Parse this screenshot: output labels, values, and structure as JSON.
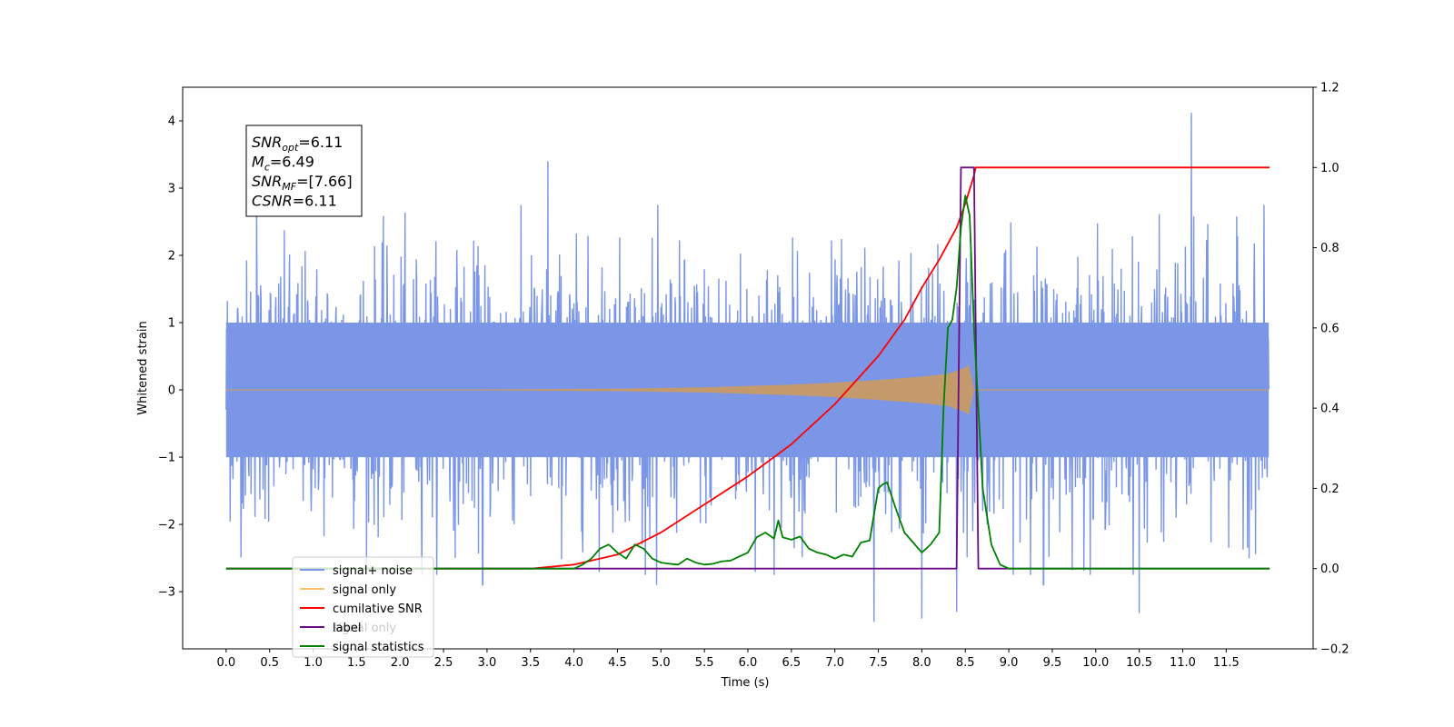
{
  "chart_data": {
    "type": "line",
    "xlabel": "Time (s)",
    "ylabel": "Whitened strain",
    "xlim": [
      -0.5,
      12.5
    ],
    "ylim": [
      -3.85,
      4.5
    ],
    "y2lim": [
      -0.2,
      1.2
    ],
    "x_tick_labels": [
      "0.0",
      "0.5",
      "1.0",
      "1.5",
      "2.0",
      "2.5",
      "3.0",
      "3.5",
      "4.0",
      "4.5",
      "5.0",
      "5.5",
      "6.0",
      "6.5",
      "7.0",
      "7.5",
      "8.0",
      "8.5",
      "9.0",
      "9.5",
      "10.0",
      "10.5",
      "11.0",
      "11.5"
    ],
    "y_tick_labels": [
      "4",
      "3",
      "2",
      "1",
      "0",
      "−1",
      "−2",
      "−3"
    ],
    "y_tick_values": [
      4,
      3,
      2,
      1,
      0,
      -1,
      -2,
      -3
    ],
    "y2_tick_labels": [
      "1.2",
      "1.0",
      "0.8",
      "0.6",
      "0.4",
      "0.2",
      "0.0",
      "−0.2"
    ],
    "y2_tick_values": [
      1.2,
      1.0,
      0.8,
      0.6,
      0.4,
      0.2,
      0.0,
      -0.2
    ],
    "info_box": {
      "lines": [
        {
          "sym": "SNR",
          "sub": "opt",
          "value": "=6.11"
        },
        {
          "sym": "M",
          "sub": "c",
          "value": "=6.49"
        },
        {
          "sym": "SNR",
          "sub": "MF",
          "value": "=[7.66]"
        },
        {
          "sym": "CSNR",
          "sub": "",
          "value": "=6.11"
        }
      ]
    },
    "legend": {
      "position": "lower-left",
      "entries": [
        {
          "label": "signal+ noise",
          "color": "#7b96e6"
        },
        {
          "label": "signal only",
          "color": "#fdbf6f"
        },
        {
          "label": "cumilative SNR",
          "color": "#ff0000"
        },
        {
          "label": "label",
          "color": "#6a0d83",
          "hidden_label": "signal only"
        },
        {
          "label": "signal statistics",
          "color": "#008000"
        }
      ]
    },
    "series": [
      {
        "name": "signal+ noise",
        "axis": "left",
        "color": "#7b96e6",
        "x_range": [
          0.0,
          11.99
        ],
        "noise_sigma": 1.0,
        "spikes": [
          [
            3.7,
            3.4
          ],
          [
            11.1,
            4.12
          ],
          [
            0.35,
            2.9
          ],
          [
            7.45,
            -3.45
          ],
          [
            8.0,
            -3.4
          ],
          [
            10.5,
            -3.32
          ],
          [
            2.95,
            -2.9
          ],
          [
            8.4,
            -3.3
          ],
          [
            4.95,
            -2.9
          ],
          [
            9.4,
            -2.9
          ]
        ]
      },
      {
        "name": "signal only",
        "axis": "left",
        "color": "#c49a6c",
        "x_range": [
          0.0,
          11.99
        ],
        "chirp_amplitude": [
          [
            3.0,
            0.0
          ],
          [
            4.5,
            0.01
          ],
          [
            5.5,
            0.03
          ],
          [
            6.5,
            0.07
          ],
          [
            7.0,
            0.1
          ],
          [
            7.5,
            0.14
          ],
          [
            8.0,
            0.19
          ],
          [
            8.3,
            0.23
          ],
          [
            8.5,
            0.32
          ],
          [
            8.55,
            0.38
          ],
          [
            8.58,
            0.0
          ]
        ]
      },
      {
        "name": "cumilative SNR",
        "axis": "right",
        "color": "#ff0000",
        "x": [
          0.0,
          3.5,
          4.0,
          4.5,
          5.0,
          5.5,
          6.0,
          6.5,
          7.0,
          7.5,
          7.8,
          8.0,
          8.2,
          8.3,
          8.4,
          8.5,
          8.6,
          8.62,
          9.0,
          10.0,
          11.0,
          12.0
        ],
        "y": [
          0.0,
          0.0,
          0.01,
          0.035,
          0.09,
          0.16,
          0.23,
          0.31,
          0.41,
          0.53,
          0.62,
          0.7,
          0.77,
          0.81,
          0.85,
          0.91,
          0.98,
          1.0,
          1.0,
          1.0,
          1.0,
          1.0
        ]
      },
      {
        "name": "label",
        "axis": "right",
        "color": "#6a0d83",
        "x": [
          0.0,
          8.4,
          8.45,
          8.6,
          8.65,
          12.0
        ],
        "y": [
          0.0,
          0.0,
          1.0,
          1.0,
          0.0,
          0.0
        ]
      },
      {
        "name": "signal statistics",
        "axis": "right",
        "color": "#008000",
        "x": [
          0.0,
          3.6,
          3.8,
          4.0,
          4.1,
          4.2,
          4.3,
          4.4,
          4.5,
          4.6,
          4.7,
          4.8,
          4.9,
          5.0,
          5.1,
          5.2,
          5.3,
          5.4,
          5.5,
          5.6,
          5.7,
          5.8,
          5.9,
          6.0,
          6.1,
          6.2,
          6.3,
          6.35,
          6.4,
          6.5,
          6.6,
          6.7,
          6.8,
          6.9,
          7.0,
          7.1,
          7.2,
          7.3,
          7.4,
          7.5,
          7.55,
          7.6,
          7.7,
          7.8,
          7.9,
          8.0,
          8.1,
          8.2,
          8.25,
          8.3,
          8.35,
          8.4,
          8.45,
          8.5,
          8.55,
          8.6,
          8.7,
          8.8,
          8.9,
          9.0,
          12.0
        ],
        "y": [
          0.0,
          0.0,
          0.0,
          0.0,
          0.01,
          0.025,
          0.05,
          0.06,
          0.04,
          0.025,
          0.06,
          0.05,
          0.025,
          0.015,
          0.012,
          0.01,
          0.025,
          0.015,
          0.01,
          0.012,
          0.018,
          0.02,
          0.03,
          0.04,
          0.078,
          0.09,
          0.075,
          0.12,
          0.078,
          0.072,
          0.08,
          0.05,
          0.04,
          0.035,
          0.025,
          0.035,
          0.03,
          0.065,
          0.07,
          0.2,
          0.21,
          0.215,
          0.15,
          0.09,
          0.065,
          0.04,
          0.06,
          0.09,
          0.4,
          0.6,
          0.62,
          0.7,
          0.85,
          0.93,
          0.88,
          0.6,
          0.2,
          0.06,
          0.01,
          0.0,
          0.0
        ]
      }
    ]
  }
}
